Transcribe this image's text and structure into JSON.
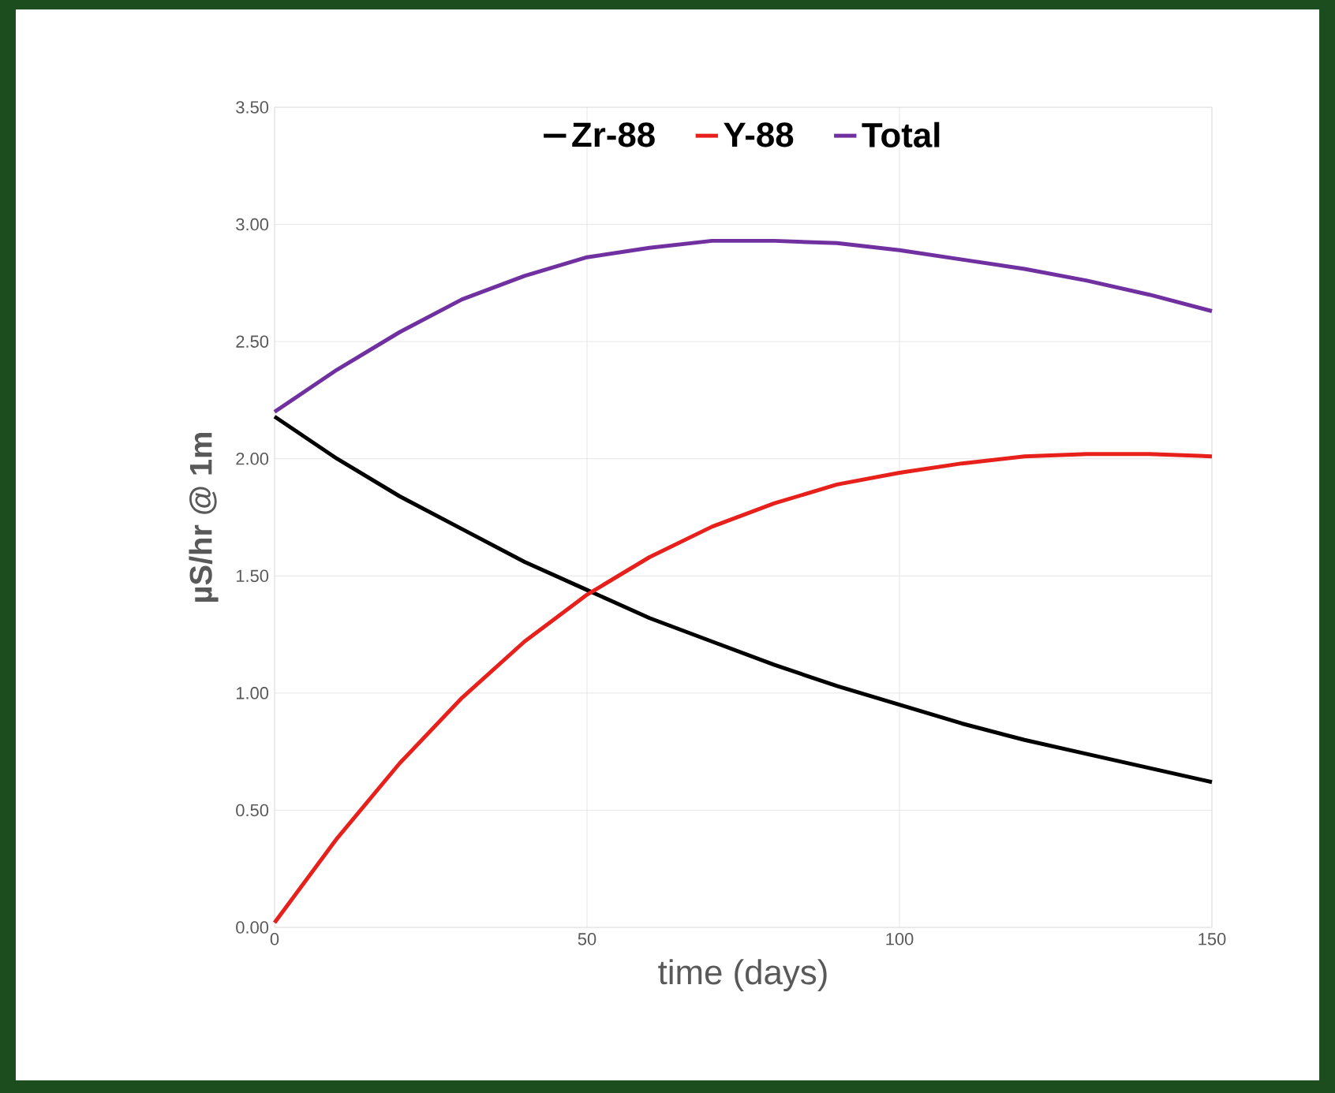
{
  "chart_data": {
    "type": "line",
    "xlabel": "time (days)",
    "ylabel": "µS/hr @ 1m",
    "x": [
      0,
      10,
      20,
      30,
      40,
      50,
      60,
      70,
      80,
      90,
      100,
      110,
      120,
      130,
      140,
      150
    ],
    "series": [
      {
        "name": "Zr-88",
        "color": "#000000",
        "values": [
          2.18,
          2.0,
          1.84,
          1.7,
          1.56,
          1.44,
          1.32,
          1.22,
          1.12,
          1.03,
          0.95,
          0.87,
          0.8,
          0.74,
          0.68,
          0.62
        ]
      },
      {
        "name": "Y-88",
        "color": "#e8201c",
        "values": [
          0.02,
          0.38,
          0.7,
          0.98,
          1.22,
          1.42,
          1.58,
          1.71,
          1.81,
          1.89,
          1.94,
          1.98,
          2.01,
          2.02,
          2.02,
          2.01
        ]
      },
      {
        "name": "Total",
        "color": "#7030a0",
        "values": [
          2.2,
          2.38,
          2.54,
          2.68,
          2.78,
          2.86,
          2.9,
          2.93,
          2.93,
          2.92,
          2.89,
          2.85,
          2.81,
          2.76,
          2.7,
          2.63
        ]
      }
    ],
    "xlim": [
      0,
      150
    ],
    "xticks": [
      0,
      50,
      100,
      150
    ],
    "ylim": [
      0,
      3.5
    ],
    "yticks": [
      {
        "value": 0,
        "label": "0.00"
      },
      {
        "value": 0.5,
        "label": "0.50"
      },
      {
        "value": 1,
        "label": "1.00"
      },
      {
        "value": 1.5,
        "label": "1.50"
      },
      {
        "value": 2,
        "label": "2.00"
      },
      {
        "value": 2.5,
        "label": "2.50"
      },
      {
        "value": 3,
        "label": "3.00"
      },
      {
        "value": 3.5,
        "label": "3.50"
      }
    ],
    "grid": true,
    "legend": "top",
    "marker": "none",
    "line_style": "solid"
  }
}
